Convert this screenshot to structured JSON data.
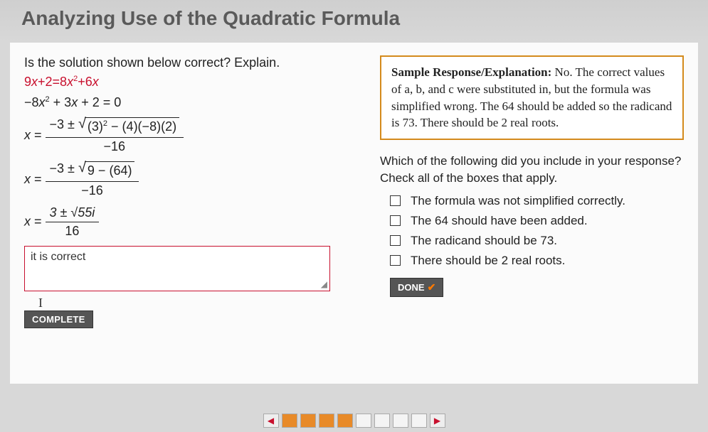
{
  "header": {
    "title": "Analyzing Use of the Quadratic Formula"
  },
  "left": {
    "question": "Is the solution shown below correct? Explain.",
    "eq1": "9x+2=8x²+6x",
    "eq2": "−8x² + 3x + 2 = 0",
    "frac1_pre": "−3 ±",
    "frac1_rad": "(3)² − (4)(−8)(2)",
    "frac1_den": "−16",
    "frac2_pre": "−3 ±",
    "frac2_rad": "9 − (64)",
    "frac2_den": "−16",
    "frac3_num": "3 ± √55i",
    "frac3_den": "16",
    "answer_value": "it is correct",
    "complete_label": "COMPLETE"
  },
  "right": {
    "sample_label": "Sample Response/Explanation:",
    "sample_text": " No. The correct values of a, b, and c were substituted in, but the formula was simplified wrong. The 64 should be added so the radicand is 73. There should be 2 real roots.",
    "follow_q": "Which of the following did you include in your response? Check all of the boxes that apply.",
    "options": [
      "The formula was not simplified correctly.",
      "The 64 should have been added.",
      "The radicand should be 73.",
      "There should be 2 real roots."
    ],
    "done_label": "DONE"
  },
  "colors": {
    "accent_red": "#c8102e",
    "accent_orange": "#d48a1c",
    "button_bg": "#555555"
  }
}
